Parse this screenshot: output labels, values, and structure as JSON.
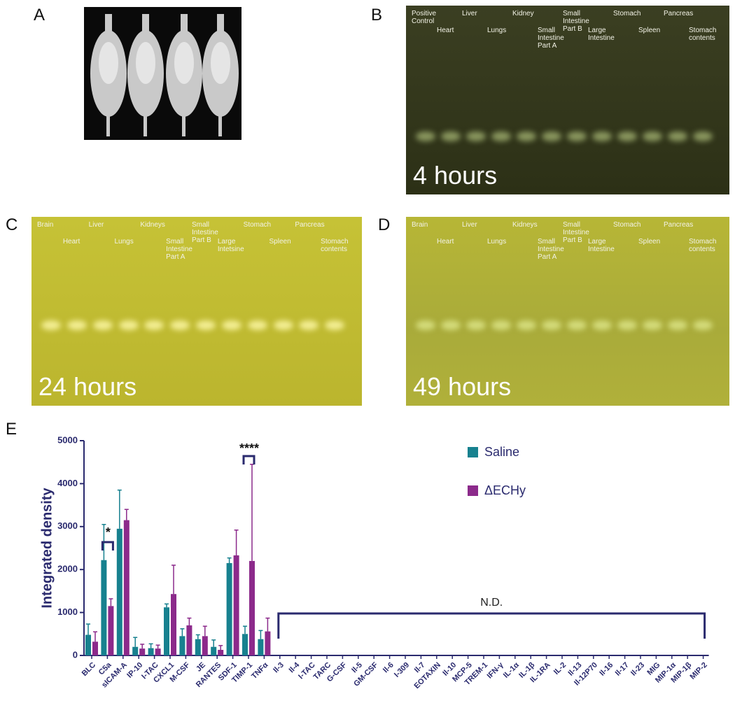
{
  "figure": {
    "labels": [
      "A",
      "B",
      "C",
      "D",
      "E"
    ],
    "gels": [
      {
        "lanes": [
          "Positive Control",
          "Heart",
          "Liver",
          "Lungs",
          "Kidney",
          "Small Intestine Part A",
          "Small Intestine Part B",
          "Large Intestine",
          "Stomach",
          "Spleen",
          "Pancreas",
          "Stomach contents"
        ],
        "caption": "4 hours"
      },
      {
        "lanes": [
          "Brain",
          "Heart",
          "Liver",
          "Lungs",
          "Kidneys",
          "Small Intestine Part A",
          "Small Intestine Part B",
          "Large Intetsine",
          "Stomach",
          "Spleen",
          "Pancreas",
          "Stomach contents"
        ],
        "caption": "24 hours"
      },
      {
        "lanes": [
          "Brain",
          "Heart",
          "Liver",
          "Lungs",
          "Kidneys",
          "Small Intestine Part A",
          "Small Intestine Part B",
          "Large Intestine",
          "Stomach",
          "Spleen",
          "Pancreas",
          "Stomach contents"
        ],
        "caption": "49 hours"
      }
    ]
  },
  "chart_data": {
    "type": "bar",
    "y_label": "Integrated density",
    "categories": [
      "BLC",
      "C5a",
      "sICAM-A",
      "IP-10",
      "I-TAC",
      "CXCL1",
      "M-CSF",
      "JE",
      "RANTES",
      "SDF-1",
      "TIMP-1",
      "TNFα",
      "Il-3",
      "Il-4",
      "I-TAC",
      "TARC",
      "G-CSF",
      "Il-5",
      "GM-CSF",
      "Il-6",
      "I-309",
      "Il-7",
      "EOTAXIN",
      "Il-10",
      "MCP-5",
      "TREM-1",
      "IFN-γ",
      "IL-1α",
      "IL-1β",
      "IL-1RA",
      "IL-2",
      "Il-13",
      "Il-12P70",
      "Il-16",
      "Il-17",
      "Il-23",
      "MIG",
      "MIP-1α",
      "MIP-1β",
      "MIP-2"
    ],
    "series": [
      {
        "name": "Saline",
        "color": "#17818f",
        "values": [
          480,
          2220,
          2950,
          200,
          170,
          1120,
          450,
          380,
          200,
          2150,
          500,
          380,
          null,
          null,
          null,
          null,
          null,
          null,
          null,
          null,
          null,
          null,
          null,
          null,
          null,
          null,
          null,
          null,
          null,
          null,
          null,
          null,
          null,
          null,
          null,
          null,
          null,
          null,
          null,
          null
        ],
        "errors": [
          250,
          830,
          900,
          220,
          100,
          80,
          170,
          100,
          160,
          120,
          180,
          200,
          null,
          null,
          null,
          null,
          null,
          null,
          null,
          null,
          null,
          null,
          null,
          null,
          null,
          null,
          null,
          null,
          null,
          null,
          null,
          null,
          null,
          null,
          null,
          null,
          null,
          null,
          null,
          null
        ]
      },
      {
        "name": "ΔECHy",
        "color": "#8c2a8b",
        "values": [
          320,
          1150,
          3150,
          160,
          160,
          1430,
          700,
          450,
          130,
          2330,
          2200,
          560,
          null,
          null,
          null,
          null,
          null,
          null,
          null,
          null,
          null,
          null,
          null,
          null,
          null,
          null,
          null,
          null,
          null,
          null,
          null,
          null,
          null,
          null,
          null,
          null,
          null,
          null,
          null,
          null
        ],
        "errors": [
          230,
          170,
          250,
          100,
          80,
          670,
          170,
          230,
          100,
          590,
          2250,
          310,
          null,
          null,
          null,
          null,
          null,
          null,
          null,
          null,
          null,
          null,
          null,
          null,
          null,
          null,
          null,
          null,
          null,
          null,
          null,
          null,
          null,
          null,
          null,
          null,
          null,
          null,
          null,
          null
        ]
      }
    ],
    "annotations": [
      "*",
      "****",
      "N.D."
    ],
    "ylim": [
      0,
      5000
    ],
    "yticks": [
      0,
      1000,
      2000,
      3000,
      4000,
      5000
    ]
  }
}
